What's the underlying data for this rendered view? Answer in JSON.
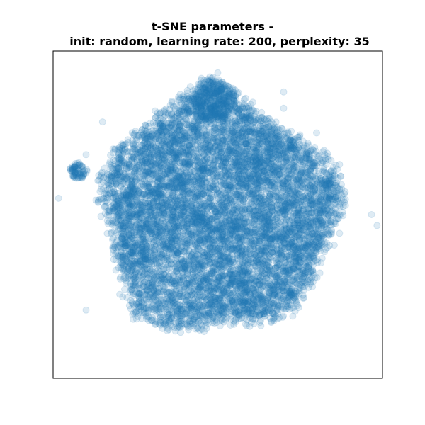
{
  "chart_data": {
    "type": "scatter",
    "title_line1": "t-SNE parameters -",
    "title_line2": "init: random, learning rate: 200, perplexity: 35",
    "xlabel": "",
    "ylabel": "",
    "axes_visible": false,
    "grid": false,
    "legend": "none",
    "marker_color": "#1f77b4",
    "marker_alpha": 0.15,
    "xlim": [
      -60,
      60
    ],
    "ylim": [
      -60,
      60
    ],
    "cluster": {
      "center": [
        0,
        0
      ],
      "radius": 42,
      "point_count": 9000
    },
    "lobes": [
      {
        "center": [
          -2,
          42
        ],
        "radius": 8,
        "point_count": 400
      },
      {
        "center": [
          -51,
          16
        ],
        "radius": 3,
        "point_count": 80
      }
    ],
    "outliers": [
      [
        -58,
        6
      ],
      [
        -48,
        22
      ],
      [
        -42,
        34
      ],
      [
        -6,
        50
      ],
      [
        -10,
        47
      ],
      [
        24,
        45
      ],
      [
        0,
        52
      ],
      [
        58,
        -4
      ],
      [
        56,
        0
      ],
      [
        -48,
        -35
      ],
      [
        24,
        39
      ],
      [
        36,
        30
      ]
    ]
  }
}
